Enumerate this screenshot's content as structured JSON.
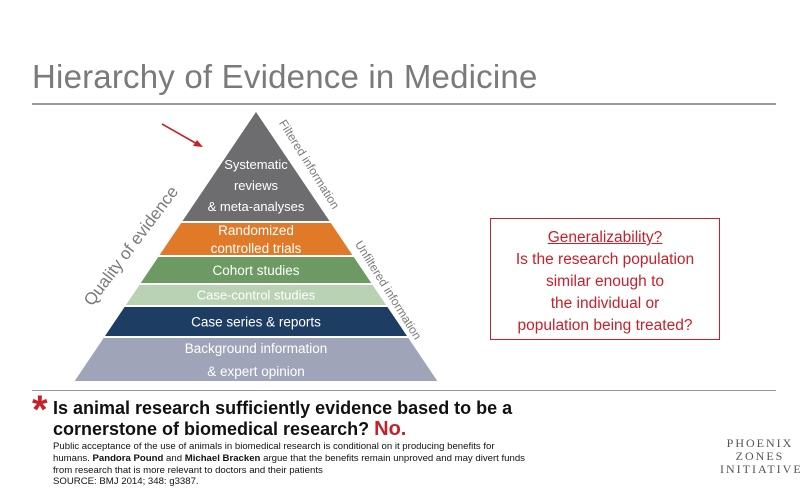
{
  "slide": {
    "title": "Hierarchy of Evidence in Medicine"
  },
  "pyramid": {
    "tiers": [
      {
        "lines": [
          "Systematic",
          "reviews",
          "& meta-analyses"
        ],
        "color": "#6d6d6f"
      },
      {
        "lines": [
          "Randomized",
          "controlled trials"
        ],
        "color": "#e07a29"
      },
      {
        "lines": [
          "Cohort studies"
        ],
        "color": "#6c9a62"
      },
      {
        "lines": [
          "Case-control studies"
        ],
        "color": "#b9d2b4"
      },
      {
        "lines": [
          "Case series & reports"
        ],
        "color": "#1e3d63"
      },
      {
        "lines": [
          "Background information",
          "& expert opinion"
        ],
        "color": "#9fa4b8"
      }
    ],
    "quality_label": "Quality of evidence",
    "filtered_label": "Filtered information",
    "unfiltered_label": "Unfiltered information",
    "arrow_color": "#c8202a"
  },
  "generalizability": {
    "title": "Generalizability?",
    "body_lines": [
      "Is the research population",
      "similar enough to",
      "the individual or",
      "population being treated?"
    ]
  },
  "question": {
    "asterisk": "*",
    "text": "Is animal research sufficiently evidence based to be a cornerstone of biomedical research?",
    "answer": "No."
  },
  "body": {
    "part1": "Public acceptance of the use of animals in biomedical research is conditional on it producing benefits for humans. ",
    "author1": "Pandora Pound",
    "and": " and ",
    "author2": "Michael Bracken",
    "part2": " argue that the benefits remain unproved and may divert funds from research that is more relevant to doctors and their patients",
    "source": "SOURCE: BMJ 2014; 348: g3387."
  },
  "logo": {
    "lines": [
      "PHOENIX",
      "ZONES",
      "INITIATIVE"
    ]
  }
}
